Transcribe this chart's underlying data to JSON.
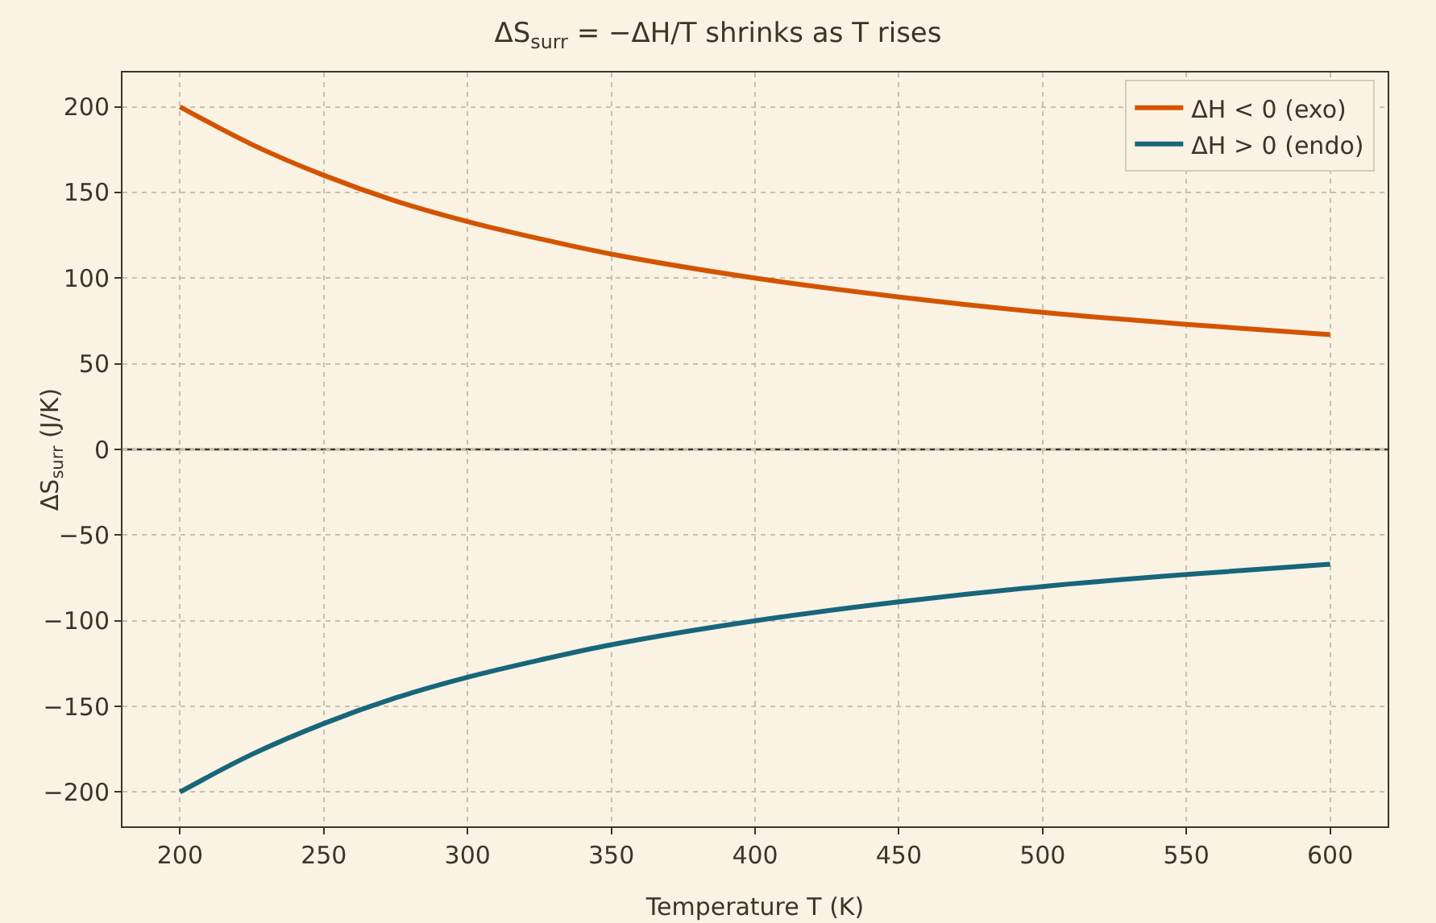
{
  "chart_data": {
    "type": "line",
    "title": "ΔS$_{surr}$ = −ΔH/T shrinks as T rises",
    "xlabel": "Temperature T (K)",
    "ylabel": "ΔS$_{surr}$ (J/K)",
    "x": [
      200,
      225,
      250,
      275,
      300,
      325,
      350,
      400,
      450,
      500,
      550,
      600
    ],
    "series": [
      {
        "name": "ΔH < 0 (exo)",
        "color": "#d35400",
        "values": [
          200,
          178,
          160,
          145,
          133,
          123,
          114,
          100,
          89,
          80,
          73,
          67
        ]
      },
      {
        "name": "ΔH > 0 (endo)",
        "color": "#17667a",
        "values": [
          -200,
          -178,
          -160,
          -145,
          -133,
          -123,
          -114,
          -100,
          -89,
          -80,
          -73,
          -67
        ]
      }
    ],
    "xlim": [
      180,
      620
    ],
    "xticks": [
      200,
      250,
      300,
      350,
      400,
      450,
      500,
      550,
      600
    ],
    "ylim": [
      -220,
      220
    ],
    "yticks": [
      -200,
      -150,
      -100,
      -50,
      0,
      50,
      100,
      150,
      200
    ],
    "ref_lines": [
      {
        "axis": "y",
        "value": 0,
        "color": "#3b3428"
      }
    ],
    "grid": true,
    "legend": "top right",
    "line_style": "solid"
  }
}
